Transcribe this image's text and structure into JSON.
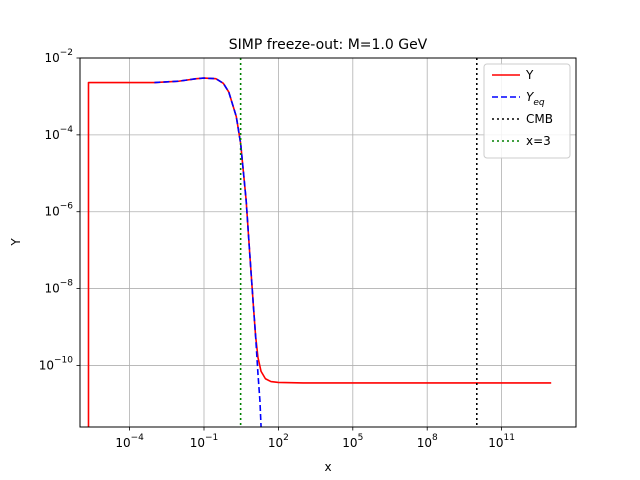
{
  "chart_data": {
    "type": "line",
    "title": "SIMP freeze-out: M=1.0 GeV",
    "xlabel": "x",
    "ylabel": "Y",
    "x_scale": "log",
    "y_scale": "log",
    "xlim": [
      1e-06,
      100000000000000.0
    ],
    "ylim": [
      2.5e-12,
      0.01
    ],
    "grid": true,
    "legend_position": "top-right",
    "x_ticks": [
      {
        "value": 0.0001,
        "base": "10",
        "exp": "−4"
      },
      {
        "value": 0.1,
        "base": "10",
        "exp": "−1"
      },
      {
        "value": 100,
        "base": "10",
        "exp": "2"
      },
      {
        "value": 100000,
        "base": "10",
        "exp": "5"
      },
      {
        "value": 100000000,
        "base": "10",
        "exp": "8"
      },
      {
        "value": 100000000000,
        "base": "10",
        "exp": "11"
      }
    ],
    "y_ticks": [
      {
        "value": 1e-10,
        "base": "10",
        "exp": "−10"
      },
      {
        "value": 1e-08,
        "base": "10",
        "exp": "−8"
      },
      {
        "value": 1e-06,
        "base": "10",
        "exp": "−6"
      },
      {
        "value": 0.0001,
        "base": "10",
        "exp": "−4"
      },
      {
        "value": 0.01,
        "base": "10",
        "exp": "−2"
      }
    ],
    "series": [
      {
        "name": "Y",
        "legend_main": "Y",
        "legend_sub": "",
        "color": "#ff0000",
        "style": "solid",
        "points": [
          [
            2.2e-06,
            1e-12
          ],
          [
            2.2e-06,
            0.0023
          ],
          [
            1e-05,
            0.0023
          ],
          [
            0.0001,
            0.0023
          ],
          [
            0.001,
            0.0023
          ],
          [
            0.01,
            0.0025
          ],
          [
            0.05,
            0.0029
          ],
          [
            0.1,
            0.003
          ],
          [
            0.3,
            0.0029
          ],
          [
            0.6,
            0.0022
          ],
          [
            1,
            0.0013
          ],
          [
            2,
            0.0003
          ],
          [
            3,
            6e-05
          ],
          [
            5,
            2e-06
          ],
          [
            7,
            8e-08
          ],
          [
            10,
            3e-09
          ],
          [
            12,
            6e-10
          ],
          [
            15,
            1.6e-10
          ],
          [
            20,
            7e-11
          ],
          [
            30,
            4.5e-11
          ],
          [
            50,
            3.8e-11
          ],
          [
            100,
            3.6e-11
          ],
          [
            1000.0,
            3.5e-11
          ],
          [
            10000.0,
            3.5e-11
          ],
          [
            1000000.0,
            3.5e-11
          ],
          [
            1000000000.0,
            3.5e-11
          ],
          [
            1000000000000.0,
            3.5e-11
          ],
          [
            10000000000000.0,
            3.5e-11
          ]
        ]
      },
      {
        "name": "Y_eq",
        "legend_main": "Y",
        "legend_sub": "eq",
        "color": "#0000ff",
        "style": "dashed",
        "points": [
          [
            0.001,
            0.0023
          ],
          [
            0.01,
            0.0025
          ],
          [
            0.05,
            0.0029
          ],
          [
            0.1,
            0.003
          ],
          [
            0.3,
            0.0029
          ],
          [
            0.6,
            0.0022
          ],
          [
            1,
            0.0013
          ],
          [
            2,
            0.0003
          ],
          [
            3,
            6e-05
          ],
          [
            5,
            2e-06
          ],
          [
            7,
            8e-08
          ],
          [
            10,
            3e-09
          ],
          [
            12,
            6e-10
          ],
          [
            15,
            6e-11
          ],
          [
            18,
            1.2e-11
          ],
          [
            20,
            1e-12
          ]
        ]
      },
      {
        "name": "CMB",
        "legend_main": "CMB",
        "legend_sub": "",
        "color": "#000000",
        "style": "dotted",
        "vline": 10000000000.0
      },
      {
        "name": "x=3",
        "legend_main": "x=3",
        "legend_sub": "",
        "color": "#008000",
        "style": "dotted",
        "vline": 3
      }
    ]
  }
}
